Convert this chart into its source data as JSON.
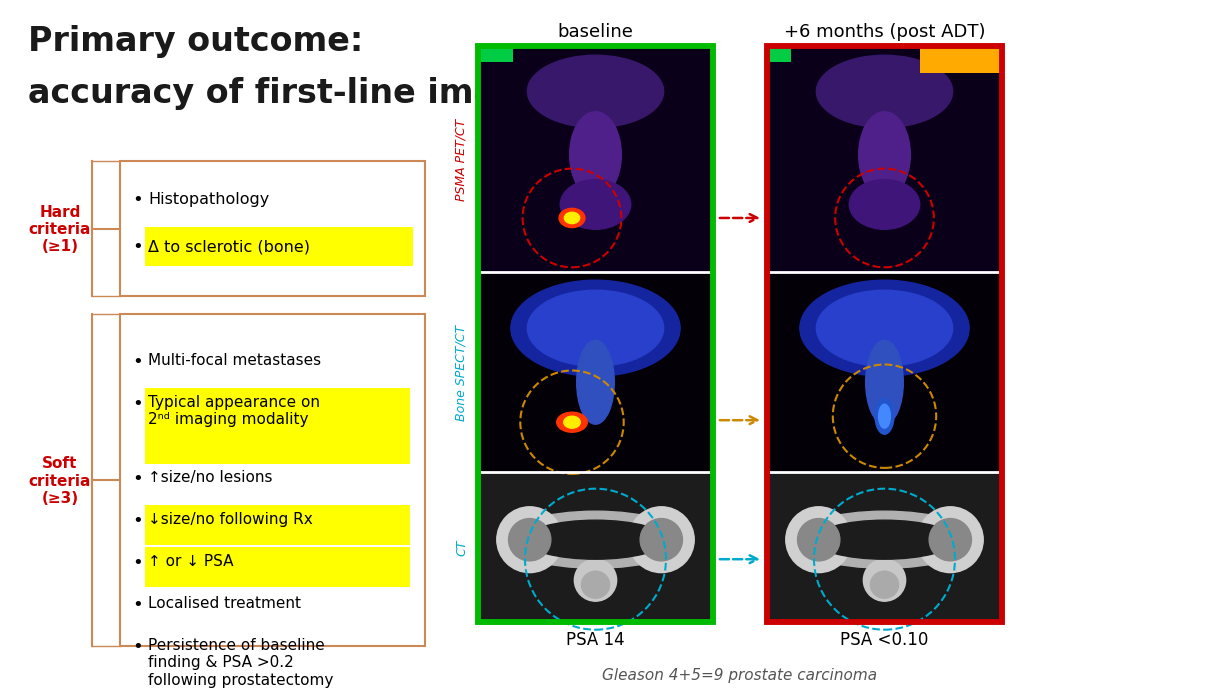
{
  "title_line1": "Primary outcome:",
  "title_line2": "accuracy of first-line imaging",
  "hard_criteria_label": "Hard\ncriteria\n(≥1)",
  "soft_criteria_label": "Soft\ncriteria\n(≥3)",
  "hard_items": [
    {
      "text": "Histopathology",
      "highlight": false
    },
    {
      "text": "Δ to sclerotic (bone)",
      "highlight": true
    }
  ],
  "soft_items": [
    {
      "text": "Multi-focal metastases",
      "highlight": false
    },
    {
      "text": "Typical appearance on\n2ⁿᵈ imaging modality",
      "highlight": true
    },
    {
      "text": "↑size/no lesions",
      "highlight": false
    },
    {
      "text": "↓size/no following Rx",
      "highlight": true
    },
    {
      "text": "↑ or ↓ PSA",
      "highlight": true
    },
    {
      "text": "Localised treatment",
      "highlight": false
    },
    {
      "text": "Persistence of baseline\nfinding & PSA >0.2\nfollowing prostatectomy",
      "highlight": false
    }
  ],
  "col_labels": [
    "baseline",
    "+6 months (post ADT)"
  ],
  "row_labels": [
    "PSMA PET/CT",
    "Bone SPECT/CT",
    "CT"
  ],
  "psa_labels": [
    "PSA 14",
    "PSA <0.10"
  ],
  "bottom_label": "Gleason 4+5=9 prostate carcinoma",
  "arrow_colors": [
    "#cc0000",
    "#cc8800",
    "#00aacc"
  ],
  "border_color_left": "#00bb00",
  "border_color_right": "#cc0000",
  "row_label_colors": [
    "#cc0000",
    "#00aacc",
    "#00aacc"
  ],
  "criteria_color": "#cc0000",
  "box_border_color": "#cc8855",
  "highlight_color": "#ffff00",
  "title_color": "#1a1a1a",
  "bg_color": "#ffffff"
}
